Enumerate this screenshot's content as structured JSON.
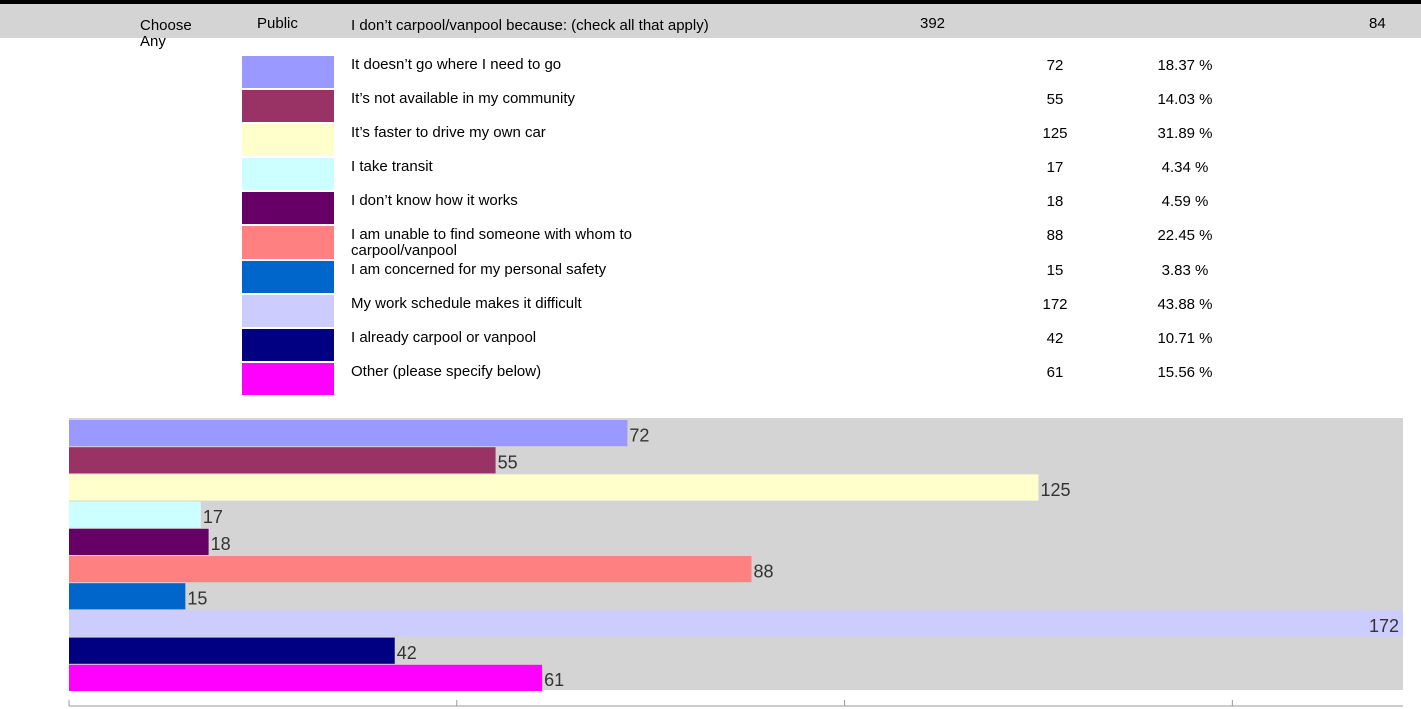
{
  "header": {
    "type_label": "Choose Any",
    "visibility": "Public",
    "question": "I don’t carpool/vanpool because: (check all that apply)",
    "total": 392,
    "respondents": 84
  },
  "table": {
    "rows": [
      {
        "label": "It doesn’t go where I need to go",
        "count": 72,
        "percent": "18.37 %"
      },
      {
        "label": "It’s not available in my community",
        "count": 55,
        "percent": "14.03 %"
      },
      {
        "label": "It’s faster to drive my own car",
        "count": 125,
        "percent": "31.89 %"
      },
      {
        "label": "I take transit",
        "count": 17,
        "percent": "4.34 %"
      },
      {
        "label": "I don’t know how it works",
        "count": 18,
        "percent": "4.59 %"
      },
      {
        "label": "I am unable to find someone with whom to carpool/vanpool",
        "count": 88,
        "percent": "22.45 %"
      },
      {
        "label": "I am concerned for my personal safety",
        "count": 15,
        "percent": "3.83 %"
      },
      {
        "label": "My work schedule makes it difficult",
        "count": 172,
        "percent": "43.88 %"
      },
      {
        "label": "I already carpool or vanpool",
        "count": 42,
        "percent": "10.71 %"
      },
      {
        "label": "Other (please specify below)",
        "count": 61,
        "percent": "15.56 %"
      }
    ]
  },
  "chart_data": {
    "type": "bar",
    "orientation": "horizontal",
    "values": [
      72,
      55,
      125,
      17,
      18,
      88,
      15,
      172,
      42,
      61
    ],
    "colors": [
      "#9999ff",
      "#993366",
      "#ffffcc",
      "#ccffff",
      "#660066",
      "#ff8080",
      "#0066cc",
      "#ccccff",
      "#000080",
      "#ff00ff"
    ],
    "xlim": [
      0,
      172
    ],
    "xticks": [
      0,
      50,
      100,
      150
    ]
  }
}
